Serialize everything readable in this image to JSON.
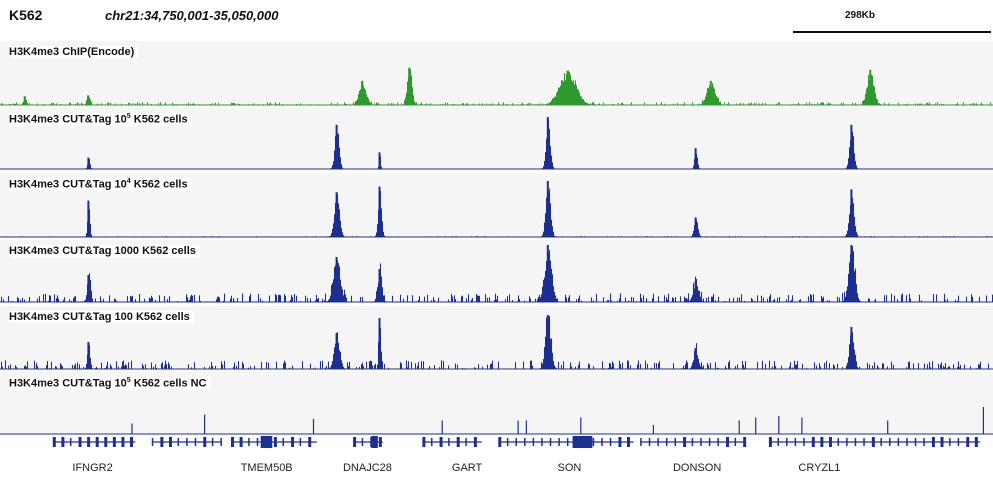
{
  "header": {
    "cell_line": "K562",
    "locus": "chr21:34,750,001-35,050,000",
    "scale_label": "298Kb"
  },
  "colors": {
    "chip": "#2e9a2e",
    "cuttag": "#1d2f8f",
    "nc": "#1d2f8f",
    "gene": "#1d2f8f",
    "track_bg": "#f5f5f5"
  },
  "chart_data": {
    "type": "area",
    "x_range": [
      34750001,
      35050000
    ],
    "tracks": [
      {
        "label_pre": "H3K4me3 ChIP(Encode)",
        "label_sup": "",
        "label_post": "",
        "color": "chip",
        "noise": 0.04,
        "peaks": [
          {
            "x": 34757500,
            "h": 0.2,
            "w": 600
          },
          {
            "x": 34776700,
            "h": 0.22,
            "w": 700
          },
          {
            "x": 34859800,
            "h": 0.55,
            "w": 1500
          },
          {
            "x": 34874000,
            "h": 0.85,
            "w": 1000
          },
          {
            "x": 34922000,
            "h": 0.78,
            "w": 3500
          },
          {
            "x": 34965400,
            "h": 0.55,
            "w": 1800
          },
          {
            "x": 35013700,
            "h": 0.8,
            "w": 1400
          }
        ]
      },
      {
        "label_pre": "H3K4me3 CUT&Tag   10",
        "label_sup": "5",
        "label_post": " K562  cells",
        "color": "cuttag",
        "noise": 0.0,
        "peaks": [
          {
            "x": 34776800,
            "h": 0.22,
            "w": 500
          },
          {
            "x": 34852000,
            "h": 0.85,
            "w": 900
          },
          {
            "x": 34865000,
            "h": 0.32,
            "w": 350
          },
          {
            "x": 34916000,
            "h": 1.0,
            "w": 900
          },
          {
            "x": 34960800,
            "h": 0.4,
            "w": 600
          },
          {
            "x": 35008000,
            "h": 0.85,
            "w": 900
          }
        ]
      },
      {
        "label_pre": "H3K4me3 CUT&Tag   10",
        "label_sup": "4",
        "label_post": " K562  cells",
        "color": "cuttag",
        "noise": 0.01,
        "peaks": [
          {
            "x": 34776800,
            "h": 0.65,
            "w": 500
          },
          {
            "x": 34852000,
            "h": 0.8,
            "w": 1100
          },
          {
            "x": 34865000,
            "h": 0.9,
            "w": 700
          },
          {
            "x": 34916000,
            "h": 1.0,
            "w": 1000
          },
          {
            "x": 34960800,
            "h": 0.35,
            "w": 800
          },
          {
            "x": 35008000,
            "h": 0.85,
            "w": 1000
          }
        ]
      },
      {
        "label_pre": "H3K4me3 CUT&Tag   1000 K562 cells",
        "label_sup": "",
        "label_post": "",
        "color": "cuttag",
        "noise": 0.09,
        "peaks": [
          {
            "x": 34776800,
            "h": 0.45,
            "w": 700
          },
          {
            "x": 34852000,
            "h": 0.75,
            "w": 1500
          },
          {
            "x": 34865000,
            "h": 0.55,
            "w": 900
          },
          {
            "x": 34916000,
            "h": 0.95,
            "w": 1500
          },
          {
            "x": 34960800,
            "h": 0.35,
            "w": 1200
          },
          {
            "x": 35008000,
            "h": 0.95,
            "w": 1300
          }
        ]
      },
      {
        "label_pre": "H3K4me3 CUT&Tag   100 K562 cells",
        "label_sup": "",
        "label_post": "",
        "color": "cuttag",
        "noise": 0.09,
        "peaks": [
          {
            "x": 34776800,
            "h": 0.45,
            "w": 600
          },
          {
            "x": 34852000,
            "h": 0.6,
            "w": 1200
          },
          {
            "x": 34865000,
            "h": 0.85,
            "w": 500
          },
          {
            "x": 34916000,
            "h": 0.9,
            "w": 1200
          },
          {
            "x": 34960800,
            "h": 0.35,
            "w": 1000
          },
          {
            "x": 35008000,
            "h": 0.7,
            "w": 1000
          }
        ]
      },
      {
        "label_pre": "H3K4me3 CUT&Tag 10",
        "label_sup": "5",
        "label_post": " K562 cells NC",
        "color": "nc",
        "noise": 0.0,
        "spikes": [
          {
            "x": 34790000,
            "h": 0.35
          },
          {
            "x": 34812000,
            "h": 0.65
          },
          {
            "x": 34845000,
            "h": 0.5
          },
          {
            "x": 34884000,
            "h": 0.45
          },
          {
            "x": 34907000,
            "h": 0.45
          },
          {
            "x": 34909500,
            "h": 0.45
          },
          {
            "x": 34926000,
            "h": 0.55
          },
          {
            "x": 34948000,
            "h": 0.3
          },
          {
            "x": 34974000,
            "h": 0.45
          },
          {
            "x": 34979000,
            "h": 0.55
          },
          {
            "x": 34986000,
            "h": 0.6
          },
          {
            "x": 34993000,
            "h": 0.55
          },
          {
            "x": 35019000,
            "h": 0.45
          },
          {
            "x": 35048000,
            "h": 0.9
          }
        ]
      }
    ],
    "genes": [
      {
        "name": "IFNGR2",
        "label_x": 34778000
      },
      {
        "name": "TMEM50B",
        "label_x": 34829000
      },
      {
        "name": "DNAJC28",
        "label_x": 34860000
      },
      {
        "name": "GART",
        "label_x": 34893000
      },
      {
        "name": "SON",
        "label_x": 34925000
      },
      {
        "name": "DONSON",
        "label_x": 34960000
      },
      {
        "name": "CRYZL1",
        "label_x": 34998000
      }
    ]
  }
}
